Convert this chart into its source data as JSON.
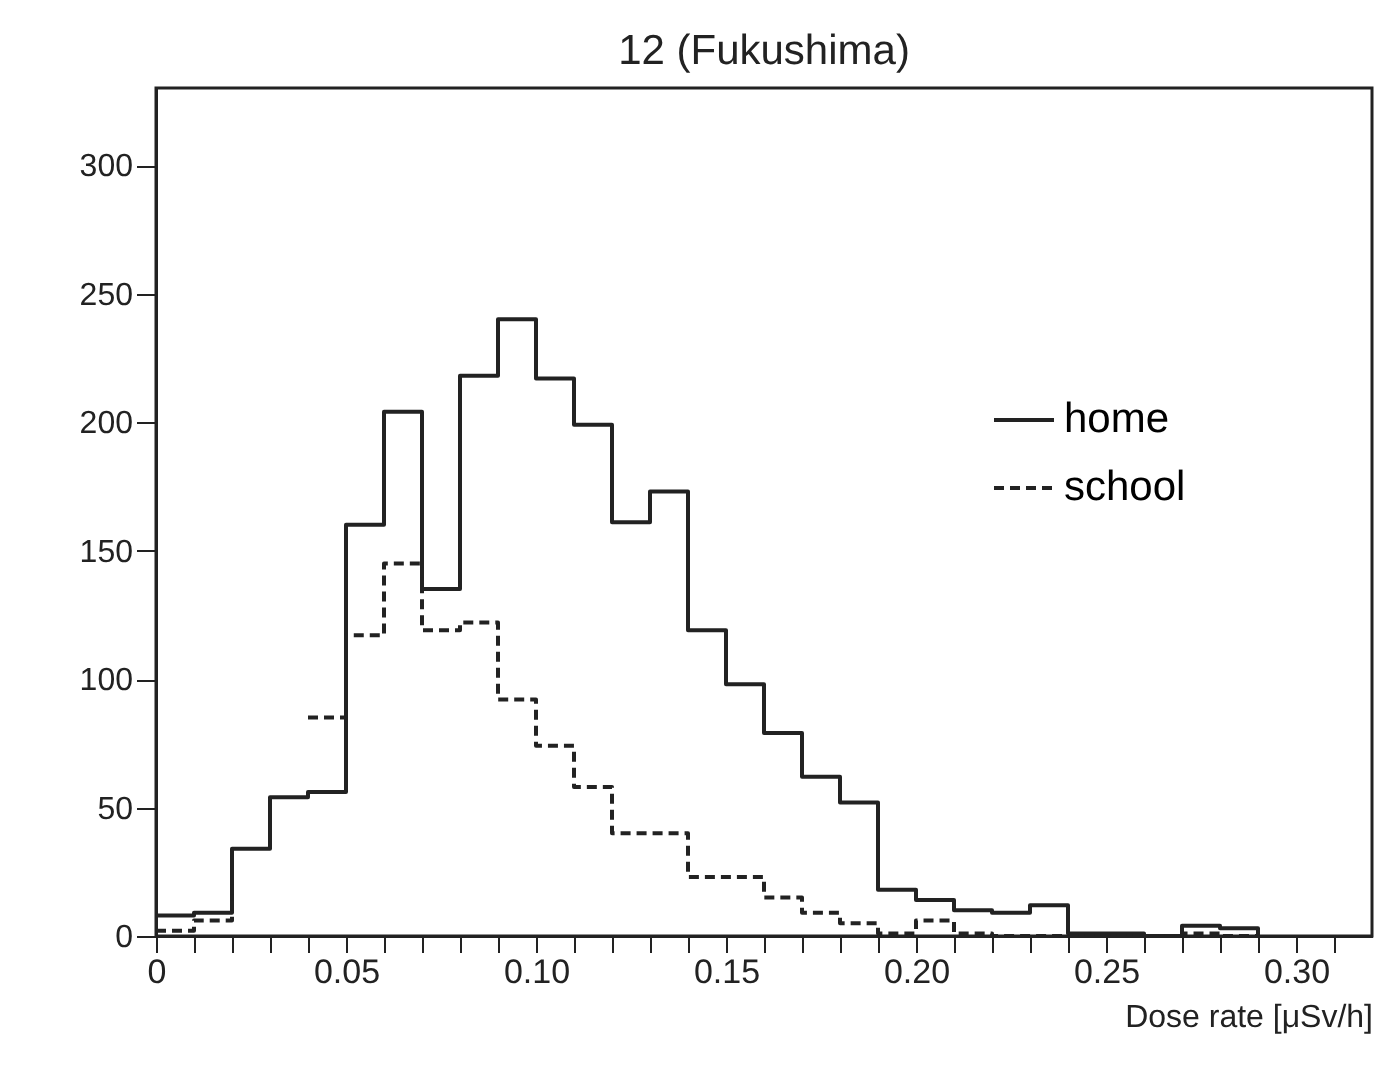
{
  "chart_data": {
    "type": "step",
    "title": "12 (Fukushima)",
    "xlabel": "Dose rate [μSv/h]",
    "x": [
      0,
      0.01,
      0.02,
      0.03,
      0.04,
      0.05,
      0.06,
      0.07,
      0.08,
      0.09,
      0.1,
      0.11,
      0.12,
      0.13,
      0.14,
      0.15,
      0.16,
      0.17,
      0.18,
      0.19,
      0.2,
      0.21,
      0.22,
      0.23,
      0.24,
      0.25,
      0.26,
      0.27,
      0.28,
      0.29
    ],
    "series": [
      {
        "name": "home",
        "color": "#222222",
        "line_style": "solid",
        "values": [
          8,
          9,
          34,
          54,
          56,
          160,
          204,
          135,
          218,
          240,
          217,
          199,
          161,
          173,
          119,
          98,
          79,
          62,
          52,
          18,
          14,
          10,
          9,
          12,
          1,
          1,
          0,
          4,
          3,
          0
        ]
      },
      {
        "name": "school",
        "color": "#222222",
        "line_style": "dashed",
        "values": [
          2,
          6,
          22,
          null,
          85,
          117,
          145,
          119,
          122,
          92,
          74,
          58,
          40,
          40,
          23,
          23,
          15,
          9,
          5,
          1,
          6,
          1,
          0,
          0,
          0,
          0,
          0,
          1,
          0,
          0
        ]
      }
    ],
    "xlim": [
      0,
      0.32
    ],
    "ylim": [
      0,
      330
    ],
    "xticks": [
      0,
      {
        "value": 0.01,
        "label": null
      },
      {
        "value": 0.02,
        "label": null
      },
      {
        "value": 0.03,
        "label": null
      },
      {
        "value": 0.04,
        "label": null
      },
      0.05,
      {
        "value": 0.06,
        "label": null
      },
      {
        "value": 0.07,
        "label": null
      },
      {
        "value": 0.08,
        "label": null
      },
      {
        "value": 0.09,
        "label": null
      },
      {
        "value": 0.1,
        "label": "0.10"
      },
      {
        "value": 0.11,
        "label": null
      },
      {
        "value": 0.12,
        "label": null
      },
      {
        "value": 0.13,
        "label": null
      },
      {
        "value": 0.14,
        "label": null
      },
      0.15,
      {
        "value": 0.16,
        "label": null
      },
      {
        "value": 0.17,
        "label": null
      },
      {
        "value": 0.18,
        "label": null
      },
      {
        "value": 0.19,
        "label": null
      },
      {
        "value": 0.2,
        "label": "0.20"
      },
      {
        "value": 0.21,
        "label": null
      },
      {
        "value": 0.22,
        "label": null
      },
      {
        "value": 0.23,
        "label": null
      },
      {
        "value": 0.24,
        "label": null
      },
      0.25,
      {
        "value": 0.26,
        "label": null
      },
      {
        "value": 0.27,
        "label": null
      },
      {
        "value": 0.28,
        "label": null
      },
      {
        "value": 0.29,
        "label": null
      },
      {
        "value": 0.3,
        "label": "0.30"
      },
      {
        "value": 0.31,
        "label": null
      }
    ],
    "yticks": [
      0,
      50,
      100,
      150,
      200,
      250,
      300
    ],
    "grid": false,
    "legend": "right"
  }
}
